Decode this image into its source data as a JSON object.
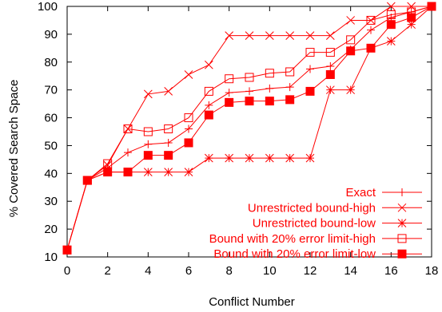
{
  "chart_data": {
    "type": "line",
    "title": "",
    "xlabel": "Conflict Number",
    "ylabel": "% Covered Search Space",
    "xlim": [
      0,
      18
    ],
    "ylim": [
      10,
      100
    ],
    "xticks": [
      "0",
      "2",
      "4",
      "6",
      "8",
      "10",
      "12",
      "14",
      "16",
      "18"
    ],
    "yticks": [
      "10",
      "20",
      "30",
      "40",
      "50",
      "60",
      "70",
      "80",
      "90",
      "100"
    ],
    "grid": false,
    "legend_position": "bottom-right",
    "color": "#ff0000",
    "series": [
      {
        "name": "Exact",
        "marker": "plus",
        "points": [
          [
            0,
            12.5
          ],
          [
            1,
            37.5
          ],
          [
            2,
            42
          ],
          [
            3,
            47.5
          ],
          [
            4,
            50.5
          ],
          [
            5,
            51
          ],
          [
            6,
            56
          ],
          [
            7,
            64.5
          ],
          [
            8,
            69
          ],
          [
            9,
            69.5
          ],
          [
            10,
            70.5
          ],
          [
            11,
            71
          ],
          [
            12,
            77.5
          ],
          [
            13,
            78.5
          ],
          [
            14,
            84.5
          ],
          [
            15,
            91.5
          ],
          [
            16,
            96
          ],
          [
            17,
            98
          ],
          [
            18,
            100
          ]
        ]
      },
      {
        "name": "Unrestricted bound-high",
        "marker": "cross",
        "points": [
          [
            0,
            12.5
          ],
          [
            1,
            37.5
          ],
          [
            2,
            43
          ],
          [
            3,
            56
          ],
          [
            4,
            68.5
          ],
          [
            5,
            69.5
          ],
          [
            6,
            75.5
          ],
          [
            7,
            79
          ],
          [
            8,
            89.5
          ],
          [
            9,
            89.5
          ],
          [
            10,
            89.5
          ],
          [
            11,
            89.5
          ],
          [
            12,
            89.5
          ],
          [
            13,
            89.5
          ],
          [
            14,
            95
          ],
          [
            15,
            95
          ],
          [
            16,
            100
          ],
          [
            17,
            100
          ],
          [
            18,
            100
          ]
        ]
      },
      {
        "name": "Unrestricted bound-low",
        "marker": "star",
        "points": [
          [
            0,
            12.5
          ],
          [
            1,
            37.5
          ],
          [
            2,
            40.5
          ],
          [
            3,
            40.5
          ],
          [
            4,
            40.5
          ],
          [
            5,
            40.5
          ],
          [
            6,
            40.5
          ],
          [
            7,
            45.5
          ],
          [
            8,
            45.5
          ],
          [
            9,
            45.5
          ],
          [
            10,
            45.5
          ],
          [
            11,
            45.5
          ],
          [
            12,
            45.5
          ],
          [
            13,
            70
          ],
          [
            14,
            70
          ],
          [
            15,
            85
          ],
          [
            16,
            87.5
          ],
          [
            17,
            93.5
          ],
          [
            18,
            100
          ]
        ]
      },
      {
        "name": "Bound with 20% error limit-high",
        "marker": "open-square",
        "points": [
          [
            0,
            12.5
          ],
          [
            1,
            37.5
          ],
          [
            2,
            43.5
          ],
          [
            3,
            56
          ],
          [
            4,
            55
          ],
          [
            5,
            56
          ],
          [
            6,
            60
          ],
          [
            7,
            69.5
          ],
          [
            8,
            74
          ],
          [
            9,
            74.5
          ],
          [
            10,
            76
          ],
          [
            11,
            76.5
          ],
          [
            12,
            83.5
          ],
          [
            13,
            83.5
          ],
          [
            14,
            88
          ],
          [
            15,
            95
          ],
          [
            16,
            97
          ],
          [
            17,
            98
          ],
          [
            18,
            100
          ]
        ]
      },
      {
        "name": "Bound with 20% error limit-low",
        "marker": "filled-square",
        "points": [
          [
            0,
            12.5
          ],
          [
            1,
            37.5
          ],
          [
            2,
            40.5
          ],
          [
            3,
            40.5
          ],
          [
            4,
            46.5
          ],
          [
            5,
            46.5
          ],
          [
            6,
            51
          ],
          [
            7,
            61
          ],
          [
            8,
            65.5
          ],
          [
            9,
            66
          ],
          [
            10,
            66
          ],
          [
            11,
            66.5
          ],
          [
            12,
            69.5
          ],
          [
            13,
            75.5
          ],
          [
            14,
            84
          ],
          [
            15,
            85
          ],
          [
            16,
            93.5
          ],
          [
            17,
            96
          ],
          [
            18,
            100
          ]
        ]
      }
    ]
  }
}
